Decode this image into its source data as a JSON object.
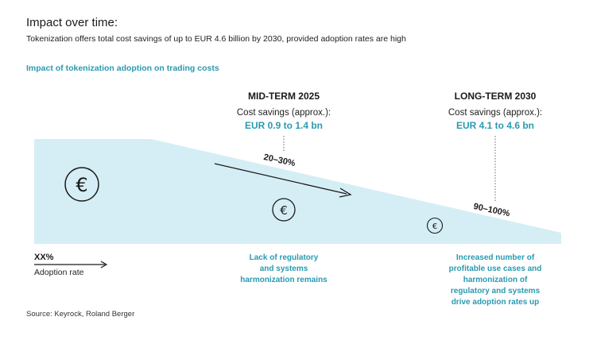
{
  "title": "Impact over time:",
  "subtitle": "Tokenization offers total cost savings of up to EUR 4.6 billion by 2030, provided adoption rates are high",
  "section_title": "Impact of tokenization adoption on trading costs",
  "phases": [
    {
      "title": "MID-TERM 2025",
      "savings_label": "Cost savings (approx.):",
      "savings_value": "EUR 0.9 to 1.4 bn",
      "adoption": "20–30%",
      "note": [
        "Lack of regulatory",
        "and systems",
        "harmonization remains"
      ]
    },
    {
      "title": "LONG-TERM 2030",
      "savings_label": "Cost savings (approx.):",
      "savings_value": "EUR 4.1 to 4.6 bn",
      "adoption": "90–100%",
      "note": [
        "Increased number of",
        "profitable use cases and",
        "harmonization of",
        "regulatory and systems",
        "drive adoption rates up"
      ]
    }
  ],
  "legend": {
    "value": "XX%",
    "label": "Adoption rate"
  },
  "icons": [
    "euro-icon-large",
    "euro-icon-medium",
    "euro-icon-small"
  ],
  "colors": {
    "accent": "#2a9ab0",
    "area_fill": "#d5eef5"
  },
  "source": "Source: Keyrock, Roland Berger"
}
